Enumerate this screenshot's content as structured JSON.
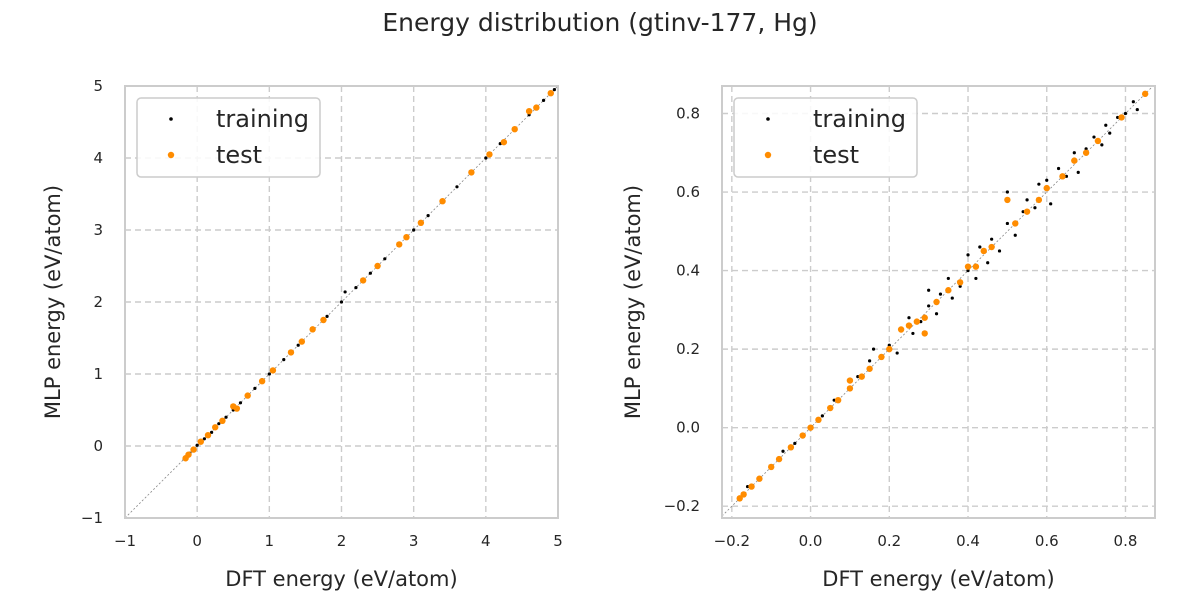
{
  "figure": {
    "title": "Energy distribution (gtinv-177, Hg)"
  },
  "chart_data": [
    {
      "type": "scatter",
      "xlabel": "DFT energy (eV/atom)",
      "ylabel": "MLP energy (eV/atom)",
      "xlim": [
        -1,
        5
      ],
      "ylim": [
        -1,
        5
      ],
      "xticks": [
        -1,
        0,
        1,
        2,
        3,
        4,
        5
      ],
      "yticks": [
        -1,
        0,
        1,
        2,
        3,
        4,
        5
      ],
      "xtick_labels": [
        "−1",
        "0",
        "1",
        "2",
        "3",
        "4",
        "5"
      ],
      "ytick_labels": [
        "−1",
        "0",
        "1",
        "2",
        "3",
        "4",
        "5"
      ],
      "grid": true,
      "diagonal_reference": true,
      "legend": {
        "position": "upper-left",
        "entries": [
          "training",
          "test"
        ]
      },
      "series": [
        {
          "name": "training",
          "color": "#000000",
          "points": [
            [
              -0.18,
              -0.18
            ],
            [
              -0.15,
              -0.15
            ],
            [
              -0.1,
              -0.1
            ],
            [
              0.0,
              0.01
            ],
            [
              0.1,
              0.1
            ],
            [
              0.2,
              0.19
            ],
            [
              0.3,
              0.31
            ],
            [
              0.4,
              0.4
            ],
            [
              0.5,
              0.5
            ],
            [
              0.6,
              0.6
            ],
            [
              0.7,
              0.7
            ],
            [
              0.8,
              0.8
            ],
            [
              0.9,
              0.92
            ],
            [
              1.0,
              1.0
            ],
            [
              1.2,
              1.2
            ],
            [
              1.4,
              1.4
            ],
            [
              1.6,
              1.6
            ],
            [
              1.8,
              1.8
            ],
            [
              2.0,
              2.0
            ],
            [
              2.05,
              2.14
            ],
            [
              2.2,
              2.2
            ],
            [
              2.4,
              2.4
            ],
            [
              2.6,
              2.6
            ],
            [
              2.8,
              2.8
            ],
            [
              3.0,
              3.0
            ],
            [
              3.2,
              3.2
            ],
            [
              3.4,
              3.4
            ],
            [
              3.6,
              3.6
            ],
            [
              3.8,
              3.8
            ],
            [
              4.0,
              4.0
            ],
            [
              4.2,
              4.2
            ],
            [
              4.4,
              4.4
            ],
            [
              4.6,
              4.6
            ],
            [
              4.8,
              4.8
            ],
            [
              4.95,
              4.95
            ]
          ]
        },
        {
          "name": "test",
          "color": "#ff8c00",
          "points": [
            [
              -0.16,
              -0.17
            ],
            [
              -0.12,
              -0.12
            ],
            [
              -0.05,
              -0.05
            ],
            [
              0.05,
              0.06
            ],
            [
              0.15,
              0.15
            ],
            [
              0.25,
              0.26
            ],
            [
              0.35,
              0.35
            ],
            [
              0.5,
              0.55
            ],
            [
              0.55,
              0.52
            ],
            [
              0.7,
              0.7
            ],
            [
              0.9,
              0.9
            ],
            [
              1.05,
              1.05
            ],
            [
              1.3,
              1.3
            ],
            [
              1.45,
              1.45
            ],
            [
              1.6,
              1.62
            ],
            [
              1.75,
              1.75
            ],
            [
              2.3,
              2.3
            ],
            [
              2.5,
              2.5
            ],
            [
              2.8,
              2.8
            ],
            [
              2.9,
              2.9
            ],
            [
              3.1,
              3.1
            ],
            [
              3.4,
              3.4
            ],
            [
              3.8,
              3.8
            ],
            [
              4.05,
              4.05
            ],
            [
              4.25,
              4.22
            ],
            [
              4.4,
              4.4
            ],
            [
              4.6,
              4.65
            ],
            [
              4.7,
              4.7
            ],
            [
              4.9,
              4.9
            ]
          ]
        }
      ]
    },
    {
      "type": "scatter",
      "xlabel": "DFT energy (eV/atom)",
      "ylabel": "MLP energy (eV/atom)",
      "xlim": [
        -0.225,
        0.875
      ],
      "ylim": [
        -0.23,
        0.87
      ],
      "xticks": [
        -0.2,
        0.0,
        0.2,
        0.4,
        0.6,
        0.8
      ],
      "yticks": [
        -0.2,
        0.0,
        0.2,
        0.4,
        0.6,
        0.8
      ],
      "xtick_labels": [
        "−0.2",
        "0.0",
        "0.2",
        "0.4",
        "0.6",
        "0.8"
      ],
      "ytick_labels": [
        "−0.2",
        "0.0",
        "0.2",
        "0.4",
        "0.6",
        "0.8"
      ],
      "grid": true,
      "diagonal_reference": true,
      "legend": {
        "position": "upper-left",
        "entries": [
          "training",
          "test"
        ]
      },
      "series": [
        {
          "name": "training",
          "color": "#000000",
          "points": [
            [
              -0.18,
              -0.18
            ],
            [
              -0.16,
              -0.15
            ],
            [
              -0.13,
              -0.13
            ],
            [
              -0.1,
              -0.1
            ],
            [
              -0.07,
              -0.06
            ],
            [
              -0.04,
              -0.04
            ],
            [
              0.0,
              0.0
            ],
            [
              0.03,
              0.03
            ],
            [
              0.06,
              0.07
            ],
            [
              0.1,
              0.1
            ],
            [
              0.12,
              0.13
            ],
            [
              0.15,
              0.17
            ],
            [
              0.16,
              0.2
            ],
            [
              0.18,
              0.18
            ],
            [
              0.2,
              0.21
            ],
            [
              0.22,
              0.19
            ],
            [
              0.25,
              0.28
            ],
            [
              0.26,
              0.24
            ],
            [
              0.28,
              0.27
            ],
            [
              0.3,
              0.31
            ],
            [
              0.3,
              0.35
            ],
            [
              0.32,
              0.29
            ],
            [
              0.33,
              0.34
            ],
            [
              0.35,
              0.38
            ],
            [
              0.36,
              0.33
            ],
            [
              0.38,
              0.36
            ],
            [
              0.4,
              0.4
            ],
            [
              0.4,
              0.44
            ],
            [
              0.42,
              0.38
            ],
            [
              0.43,
              0.46
            ],
            [
              0.45,
              0.42
            ],
            [
              0.46,
              0.48
            ],
            [
              0.48,
              0.45
            ],
            [
              0.5,
              0.52
            ],
            [
              0.5,
              0.6
            ],
            [
              0.52,
              0.49
            ],
            [
              0.54,
              0.55
            ],
            [
              0.55,
              0.58
            ],
            [
              0.57,
              0.56
            ],
            [
              0.58,
              0.62
            ],
            [
              0.6,
              0.63
            ],
            [
              0.61,
              0.57
            ],
            [
              0.63,
              0.66
            ],
            [
              0.65,
              0.64
            ],
            [
              0.67,
              0.7
            ],
            [
              0.68,
              0.65
            ],
            [
              0.7,
              0.71
            ],
            [
              0.72,
              0.74
            ],
            [
              0.74,
              0.72
            ],
            [
              0.75,
              0.77
            ],
            [
              0.76,
              0.75
            ],
            [
              0.78,
              0.79
            ],
            [
              0.8,
              0.8
            ],
            [
              0.82,
              0.83
            ],
            [
              0.83,
              0.81
            ],
            [
              0.85,
              0.85
            ]
          ]
        },
        {
          "name": "test",
          "color": "#ff8c00",
          "points": [
            [
              -0.18,
              -0.18
            ],
            [
              -0.17,
              -0.17
            ],
            [
              -0.15,
              -0.15
            ],
            [
              -0.13,
              -0.13
            ],
            [
              -0.1,
              -0.1
            ],
            [
              -0.08,
              -0.08
            ],
            [
              -0.05,
              -0.05
            ],
            [
              -0.02,
              -0.02
            ],
            [
              0.0,
              0.0
            ],
            [
              0.02,
              0.02
            ],
            [
              0.05,
              0.05
            ],
            [
              0.07,
              0.07
            ],
            [
              0.1,
              0.1
            ],
            [
              0.1,
              0.12
            ],
            [
              0.13,
              0.13
            ],
            [
              0.15,
              0.15
            ],
            [
              0.18,
              0.18
            ],
            [
              0.2,
              0.2
            ],
            [
              0.23,
              0.25
            ],
            [
              0.25,
              0.26
            ],
            [
              0.27,
              0.27
            ],
            [
              0.29,
              0.28
            ],
            [
              0.29,
              0.24
            ],
            [
              0.32,
              0.32
            ],
            [
              0.35,
              0.35
            ],
            [
              0.38,
              0.37
            ],
            [
              0.4,
              0.41
            ],
            [
              0.42,
              0.41
            ],
            [
              0.44,
              0.45
            ],
            [
              0.46,
              0.46
            ],
            [
              0.5,
              0.58
            ],
            [
              0.52,
              0.52
            ],
            [
              0.55,
              0.55
            ],
            [
              0.58,
              0.58
            ],
            [
              0.6,
              0.61
            ],
            [
              0.64,
              0.64
            ],
            [
              0.67,
              0.68
            ],
            [
              0.7,
              0.7
            ],
            [
              0.73,
              0.73
            ],
            [
              0.79,
              0.79
            ],
            [
              0.85,
              0.85
            ]
          ]
        }
      ]
    }
  ]
}
